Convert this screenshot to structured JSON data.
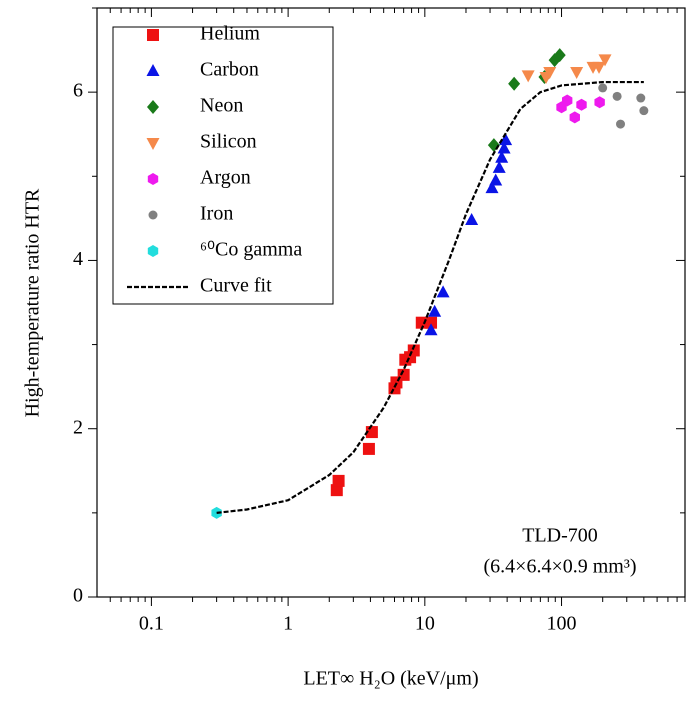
{
  "chart_data": {
    "type": "scatter",
    "x_label": "LET∞ H₂O (keV/μm)",
    "y_label": "High-temperature ratio HTR",
    "annotations": [
      "TLD-700",
      "(6.4×6.4×0.9 mm³)"
    ],
    "xlog": true,
    "xlim": [
      0.04,
      800
    ],
    "ylim": [
      0,
      7
    ],
    "xticks": [
      0.1,
      1,
      10,
      100
    ],
    "xminorticks": [
      0.05,
      0.06,
      0.07,
      0.08,
      0.09,
      0.2,
      0.3,
      0.4,
      0.5,
      0.6,
      0.7,
      0.8,
      0.9,
      2,
      3,
      4,
      5,
      6,
      7,
      8,
      9,
      20,
      30,
      40,
      50,
      60,
      70,
      80,
      90,
      200,
      300,
      400,
      500,
      600,
      700,
      800
    ],
    "yticks": [
      0,
      2,
      4,
      6
    ],
    "yminorticks": [
      1,
      3,
      5,
      7
    ],
    "legend": "upper left",
    "series": [
      {
        "name": "Helium",
        "color": "#ee1111",
        "marker": "square",
        "x": [
          2.27,
          2.34,
          3.9,
          4.1,
          6.0,
          6.2,
          7.0,
          7.2,
          7.8,
          8.3,
          9.5,
          11.1
        ],
        "y": [
          1.27,
          1.38,
          1.76,
          1.96,
          2.48,
          2.55,
          2.64,
          2.82,
          2.85,
          2.93,
          3.26,
          3.26
        ]
      },
      {
        "name": "Carbon",
        "color": "#0a14e6",
        "marker": "triangle",
        "x": [
          11.1,
          11.8,
          13.6,
          22.0,
          31.0,
          33.0,
          35.0,
          36.5,
          38.0,
          39.0
        ],
        "y": [
          3.17,
          3.39,
          3.62,
          4.48,
          4.86,
          4.95,
          5.1,
          5.22,
          5.33,
          5.43
        ]
      },
      {
        "name": "Neon",
        "color": "#1a7a1a",
        "marker": "diamond",
        "x": [
          32.0,
          45.0,
          75.0,
          89.0,
          97.0
        ],
        "y": [
          5.37,
          6.1,
          6.18,
          6.38,
          6.44
        ]
      },
      {
        "name": "Silicon",
        "color": "#f5894a",
        "marker": "triangle-down",
        "x": [
          57.0,
          77.0,
          82.0,
          129.0,
          170.0,
          188.0,
          208.0
        ],
        "y": [
          6.2,
          6.18,
          6.24,
          6.24,
          6.3,
          6.3,
          6.39
        ]
      },
      {
        "name": "Argon",
        "color": "#ee1aee",
        "marker": "hexagon",
        "x": [
          100.0,
          110.0,
          125.0,
          140.0,
          190.0
        ],
        "y": [
          5.82,
          5.9,
          5.7,
          5.85,
          5.88
        ]
      },
      {
        "name": "Iron",
        "color": "#808080",
        "marker": "circle",
        "x": [
          200.0,
          255.0,
          270.0,
          380.0,
          400.0
        ],
        "y": [
          6.05,
          5.95,
          5.62,
          5.93,
          5.78
        ]
      },
      {
        "name": "⁶⁰Co gamma",
        "color": "#22dddd",
        "marker": "hexagon",
        "x": [
          0.3
        ],
        "y": [
          1.0
        ]
      },
      {
        "name": "Curve fit",
        "color": "#000000",
        "line": "dashed",
        "x": [
          0.3,
          0.5,
          1,
          2,
          3,
          5,
          7,
          10,
          15,
          20,
          30,
          50,
          70,
          100,
          200,
          400
        ],
        "y": [
          1.0,
          1.04,
          1.15,
          1.45,
          1.72,
          2.25,
          2.7,
          3.27,
          4.0,
          4.55,
          5.2,
          5.8,
          6.0,
          6.08,
          6.12,
          6.12
        ]
      }
    ]
  }
}
